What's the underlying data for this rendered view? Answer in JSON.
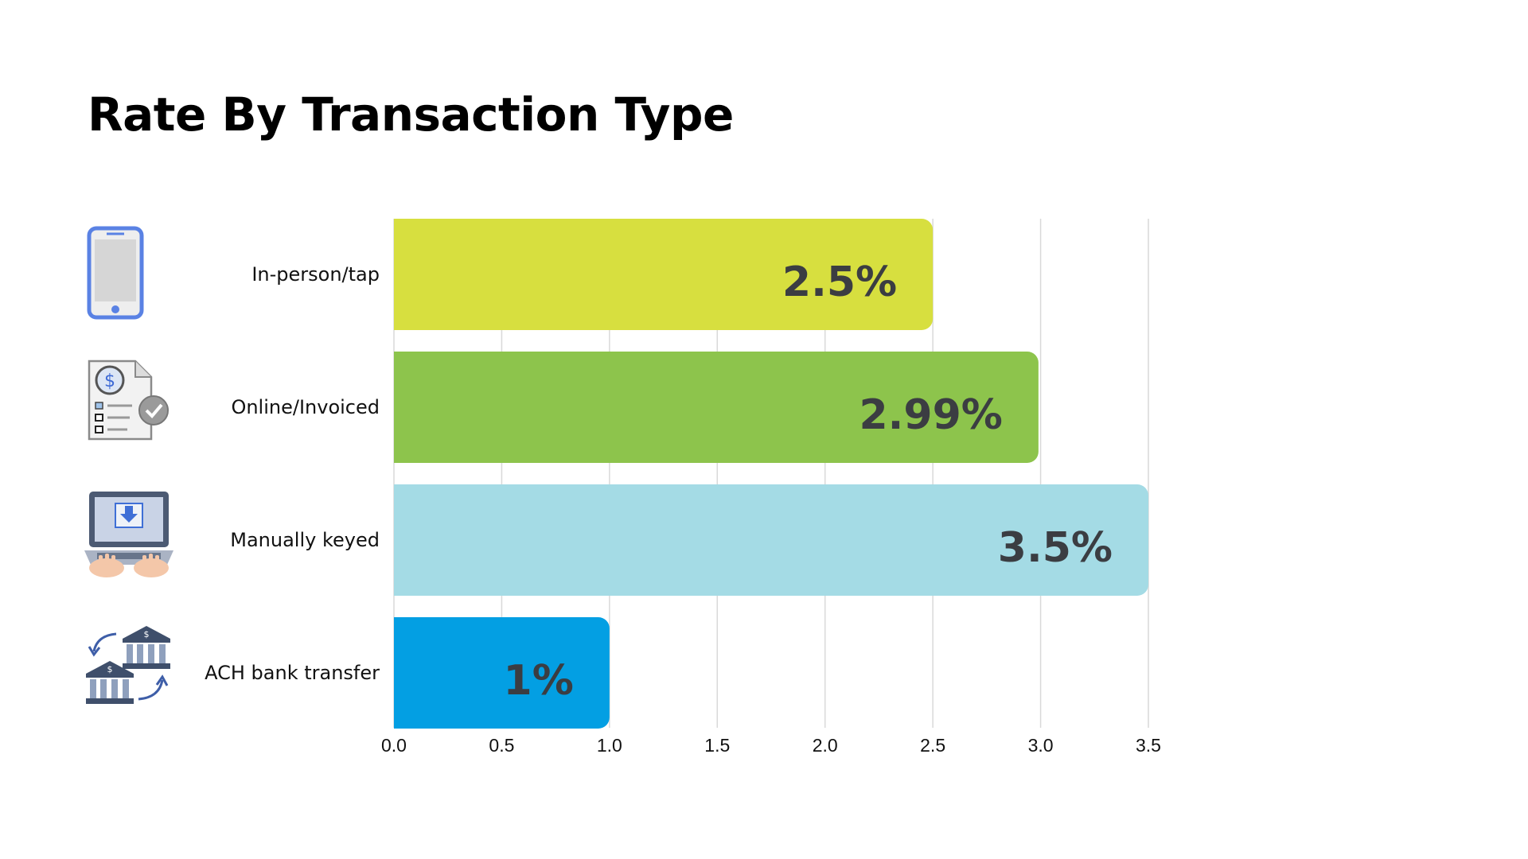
{
  "title": "Rate By Transaction Type",
  "chart_data": {
    "type": "bar",
    "orientation": "horizontal",
    "title": "Rate By Transaction Type",
    "categories": [
      "In-person/tap",
      "Online/Invoiced",
      "Manually keyed",
      "ACH bank transfer"
    ],
    "values": [
      2.5,
      2.99,
      3.5,
      1.0
    ],
    "data_labels": [
      "2.5%",
      "2.99%",
      "3.5%",
      "1%"
    ],
    "colors": [
      "#d7df3f",
      "#8dc44c",
      "#a4dbe5",
      "#039fe3"
    ],
    "icons": [
      "smartphone-icon",
      "invoice-icon",
      "laptop-typing-icon",
      "bank-transfer-icon"
    ],
    "xlim": [
      0,
      3.5
    ],
    "xticks": [
      0.0,
      0.5,
      1.0,
      1.5,
      2.0,
      2.5,
      3.0,
      3.5
    ],
    "xtick_labels": [
      "0.0",
      "0.5",
      "1.0",
      "1.5",
      "2.0",
      "2.5",
      "3.0",
      "3.5"
    ],
    "xlabel": "",
    "ylabel": "",
    "grid": true,
    "legend": "none"
  }
}
